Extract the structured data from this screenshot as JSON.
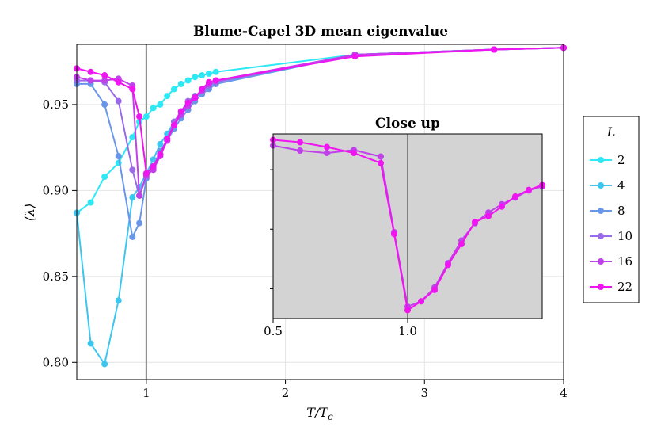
{
  "chart_data": [
    {
      "type": "line",
      "title": "Blume-Capel 3D mean eigenvalue",
      "xlabel": "T/T_c",
      "ylabel": "⟨λ⟩",
      "xlim": [
        0.5,
        4.0
      ],
      "ylim": [
        0.79,
        0.985
      ],
      "xticks": [
        1,
        2,
        3,
        4
      ],
      "xtick_labels": [
        "1",
        "2",
        "3",
        "4"
      ],
      "yticks": [
        0.8,
        0.85,
        0.9,
        0.95
      ],
      "ytick_labels": [
        "0.80",
        "0.85",
        "0.90",
        "0.95"
      ],
      "vline_x": 1.0,
      "grid": true,
      "legend": {
        "title": "L",
        "placement": "right"
      },
      "series": [
        {
          "name": "2",
          "color": "#2ee8f5",
          "x": [
            0.5,
            0.6,
            0.7,
            0.8,
            0.9,
            0.95,
            1.0,
            1.05,
            1.1,
            1.15,
            1.2,
            1.25,
            1.3,
            1.35,
            1.4,
            1.45,
            1.5,
            2.5,
            3.5,
            4.0
          ],
          "y": [
            0.887,
            0.893,
            0.908,
            0.916,
            0.931,
            0.94,
            0.943,
            0.948,
            0.95,
            0.955,
            0.959,
            0.962,
            0.964,
            0.966,
            0.967,
            0.968,
            0.969,
            0.979,
            0.982,
            0.983
          ]
        },
        {
          "name": "4",
          "color": "#3cc6f0",
          "x": [
            0.5,
            0.6,
            0.7,
            0.8,
            0.9,
            0.95,
            1.0,
            1.05,
            1.1,
            1.15,
            1.2,
            1.25,
            1.3,
            1.35,
            1.4,
            1.45,
            1.5,
            2.5,
            3.5,
            4.0
          ],
          "y": [
            0.887,
            0.811,
            0.799,
            0.836,
            0.896,
            0.902,
            0.91,
            0.918,
            0.927,
            0.933,
            0.94,
            0.945,
            0.95,
            0.954,
            0.957,
            0.96,
            0.962,
            0.979,
            0.982,
            0.983
          ]
        },
        {
          "name": "8",
          "color": "#6a96ea",
          "x": [
            0.5,
            0.6,
            0.7,
            0.8,
            0.9,
            0.95,
            1.0,
            1.05,
            1.1,
            1.15,
            1.2,
            1.25,
            1.3,
            1.35,
            1.4,
            1.45,
            1.5,
            2.5,
            3.5,
            4.0
          ],
          "y": [
            0.962,
            0.962,
            0.95,
            0.92,
            0.873,
            0.881,
            0.907,
            0.914,
            0.923,
            0.929,
            0.936,
            0.942,
            0.947,
            0.952,
            0.956,
            0.959,
            0.962,
            0.979,
            0.982,
            0.983
          ]
        },
        {
          "name": "10",
          "color": "#9a6ae8",
          "x": [
            0.5,
            0.6,
            0.7,
            0.8,
            0.9,
            0.95,
            1.0,
            1.05,
            1.1,
            1.15,
            1.2,
            1.25,
            1.3,
            1.35,
            1.4,
            1.45,
            1.5,
            2.5,
            3.5,
            4.0
          ],
          "y": [
            0.964,
            0.964,
            0.963,
            0.952,
            0.912,
            0.897,
            0.908,
            0.913,
            0.921,
            0.93,
            0.94,
            0.946,
            0.952,
            0.955,
            0.958,
            0.961,
            0.963,
            0.979,
            0.982,
            0.983
          ]
        },
        {
          "name": "16",
          "color": "#c040ea",
          "x": [
            0.5,
            0.6,
            0.7,
            0.8,
            0.9,
            0.95,
            1.0,
            1.05,
            1.1,
            1.15,
            1.2,
            1.25,
            1.3,
            1.35,
            1.4,
            1.45,
            1.5,
            2.5,
            3.5,
            4.0
          ],
          "y": [
            0.966,
            0.964,
            0.964,
            0.965,
            0.961,
            0.897,
            0.909,
            0.912,
            0.92,
            0.929,
            0.938,
            0.944,
            0.949,
            0.954,
            0.958,
            0.962,
            0.964,
            0.979,
            0.982,
            0.983
          ]
        },
        {
          "name": "22",
          "color": "#f014f0",
          "x": [
            0.5,
            0.6,
            0.7,
            0.8,
            0.9,
            0.95,
            1.0,
            1.05,
            1.1,
            1.15,
            1.2,
            1.25,
            1.3,
            1.35,
            1.4,
            1.45,
            1.5,
            2.5,
            3.5,
            4.0
          ],
          "y": [
            0.971,
            0.969,
            0.967,
            0.963,
            0.959,
            0.943,
            0.91,
            0.914,
            0.921,
            0.93,
            0.938,
            0.946,
            0.951,
            0.954,
            0.959,
            0.963,
            0.964,
            0.978,
            0.982,
            0.983
          ]
        }
      ]
    },
    {
      "type": "line",
      "title": "Close up",
      "xlim": [
        0.5,
        1.5
      ],
      "xticks": [
        0.5,
        1.0
      ],
      "xtick_labels": [
        "0.5",
        "1.0"
      ],
      "vline_x": 1.0,
      "background": "#d3d3d3",
      "series": [
        {
          "name": "16",
          "color": "#c040ea",
          "points": [
            [
              0.5,
              0.9905
            ],
            [
              0.6,
              0.982
            ],
            [
              0.7,
              0.978
            ],
            [
              0.8,
              0.983
            ],
            [
              0.9,
              0.972
            ],
            [
              0.95,
              0.845
            ],
            [
              1.0,
              0.72
            ],
            [
              1.05,
              0.729
            ],
            [
              1.1,
              0.752
            ],
            [
              1.15,
              0.793
            ],
            [
              1.2,
              0.831
            ],
            [
              1.25,
              0.86
            ],
            [
              1.3,
              0.878
            ],
            [
              1.35,
              0.892
            ],
            [
              1.4,
              0.903
            ],
            [
              1.45,
              0.915
            ],
            [
              1.5,
              0.922
            ]
          ]
        },
        {
          "name": "22",
          "color": "#f014f0",
          "points": [
            [
              0.5,
              1.0
            ],
            [
              0.6,
              0.996
            ],
            [
              0.7,
              0.988
            ],
            [
              0.8,
              0.978
            ],
            [
              0.9,
              0.961
            ],
            [
              0.95,
              0.842
            ],
            [
              1.0,
              0.714
            ],
            [
              1.05,
              0.729
            ],
            [
              1.1,
              0.748
            ],
            [
              1.15,
              0.79
            ],
            [
              1.2,
              0.825
            ],
            [
              1.25,
              0.862
            ],
            [
              1.3,
              0.872
            ],
            [
              1.35,
              0.888
            ],
            [
              1.4,
              0.905
            ],
            [
              1.45,
              0.916
            ],
            [
              1.5,
              0.924
            ]
          ]
        }
      ]
    }
  ]
}
